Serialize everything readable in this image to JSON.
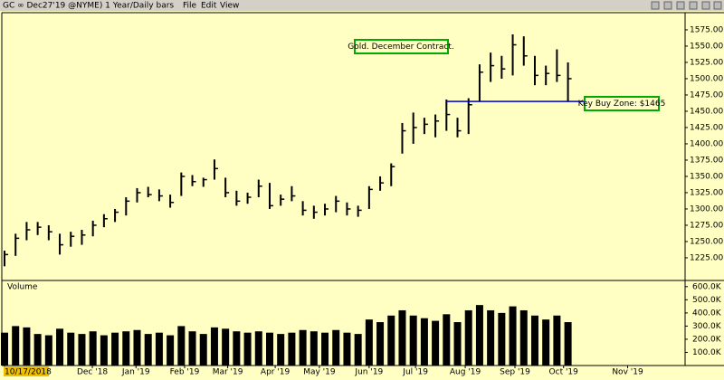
{
  "header": {
    "title": "GC ∞ Dec27'19 @NYME) 1 Year/Daily bars",
    "menu": [
      "File",
      "Edit",
      "View"
    ]
  },
  "chart_data": {
    "type": "ohlc",
    "annotation": "Gold. December Contract.",
    "hline": {
      "value": 1465,
      "label": "Key Buy Zone: $1465",
      "color": "#0000cc"
    },
    "volume_label": "Volume",
    "color": "#000000",
    "background": "#ffffc4",
    "high": [
      1236,
      1262,
      1280,
      1280,
      1275,
      1262,
      1265,
      1268,
      1282,
      1292,
      1300,
      1318,
      1332,
      1334,
      1330,
      1322,
      1356,
      1352,
      1348,
      1376,
      1348,
      1328,
      1325,
      1345,
      1340,
      1322,
      1335,
      1312,
      1305,
      1308,
      1320,
      1310,
      1305,
      1335,
      1350,
      1370,
      1432,
      1448,
      1440,
      1445,
      1468,
      1440,
      1470,
      1522,
      1540,
      1535,
      1568,
      1565,
      1535,
      1520,
      1545,
      1525
    ],
    "low": [
      1212,
      1228,
      1252,
      1260,
      1252,
      1230,
      1242,
      1245,
      1258,
      1272,
      1280,
      1290,
      1310,
      1318,
      1312,
      1302,
      1320,
      1335,
      1334,
      1345,
      1318,
      1305,
      1308,
      1318,
      1300,
      1305,
      1312,
      1290,
      1285,
      1290,
      1295,
      1290,
      1288,
      1300,
      1328,
      1335,
      1385,
      1400,
      1415,
      1410,
      1420,
      1410,
      1415,
      1465,
      1495,
      1500,
      1505,
      1520,
      1490,
      1490,
      1495,
      1465
    ],
    "close": [
      1230,
      1255,
      1268,
      1272,
      1265,
      1245,
      1258,
      1260,
      1275,
      1285,
      1295,
      1312,
      1325,
      1322,
      1320,
      1310,
      1350,
      1342,
      1345,
      1362,
      1325,
      1312,
      1318,
      1335,
      1305,
      1315,
      1320,
      1298,
      1295,
      1300,
      1312,
      1300,
      1298,
      1330,
      1340,
      1365,
      1420,
      1425,
      1430,
      1435,
      1445,
      1420,
      1460,
      1510,
      1520,
      1515,
      1552,
      1535,
      1505,
      1508,
      1505,
      1500
    ],
    "volume": [
      250000,
      300000,
      290000,
      240000,
      230000,
      280000,
      250000,
      240000,
      260000,
      230000,
      250000,
      260000,
      270000,
      240000,
      250000,
      230000,
      300000,
      260000,
      240000,
      290000,
      280000,
      260000,
      250000,
      260000,
      250000,
      240000,
      250000,
      270000,
      260000,
      250000,
      270000,
      250000,
      240000,
      350000,
      330000,
      380000,
      420000,
      380000,
      360000,
      340000,
      390000,
      330000,
      420000,
      460000,
      420000,
      400000,
      450000,
      420000,
      380000,
      350000,
      380000,
      330000
    ],
    "ylim": [
      1193,
      1593
    ],
    "yticks": [
      {
        "value": 1225,
        "label": "1225.00"
      },
      {
        "value": 1250,
        "label": "1250.00"
      },
      {
        "value": 1275,
        "label": "1275.00"
      },
      {
        "value": 1300,
        "label": "1300.00"
      },
      {
        "value": 1325,
        "label": "1325.00"
      },
      {
        "value": 1350,
        "label": "1350.00"
      },
      {
        "value": 1375,
        "label": "1375.00"
      },
      {
        "value": 1400,
        "label": "1400.00"
      },
      {
        "value": 1425,
        "label": "1425.00"
      },
      {
        "value": 1450,
        "label": "1450.00"
      },
      {
        "value": 1475,
        "label": "1475.00"
      },
      {
        "value": 1500,
        "label": "1500.00"
      },
      {
        "value": 1525,
        "label": "1525.00"
      },
      {
        "value": 1550,
        "label": "1550.00"
      },
      {
        "value": 1575,
        "label": "1575.00"
      }
    ],
    "volume_ylim": [
      0,
      640000
    ],
    "volume_ticks": [
      {
        "value": 100000,
        "label": "100.0K"
      },
      {
        "value": 200000,
        "label": "200.0K"
      },
      {
        "value": 300000,
        "label": "300.0K"
      },
      {
        "value": 400000,
        "label": "400.0K"
      },
      {
        "value": 500000,
        "label": "500.0K"
      },
      {
        "value": 600000,
        "label": "600.0K"
      }
    ],
    "xlim": [
      0,
      61.6
    ],
    "xticks": [
      {
        "value": 0,
        "label": "10/17/2018"
      },
      {
        "value": 7.95,
        "label": "Dec '18"
      },
      {
        "value": 11.9,
        "label": "Jan '19"
      },
      {
        "value": 16.3,
        "label": "Feb '19"
      },
      {
        "value": 20.2,
        "label": "Mar '19"
      },
      {
        "value": 24.5,
        "label": "Apr '19"
      },
      {
        "value": 28.5,
        "label": "May '19"
      },
      {
        "value": 33,
        "label": "Jun '19"
      },
      {
        "value": 37.2,
        "label": "Jul '19"
      },
      {
        "value": 41.7,
        "label": "Aug '19"
      },
      {
        "value": 46.2,
        "label": "Sep '19"
      },
      {
        "value": 50.6,
        "label": "Oct '19"
      },
      {
        "value": 56.4,
        "label": "Nov '19"
      }
    ]
  }
}
